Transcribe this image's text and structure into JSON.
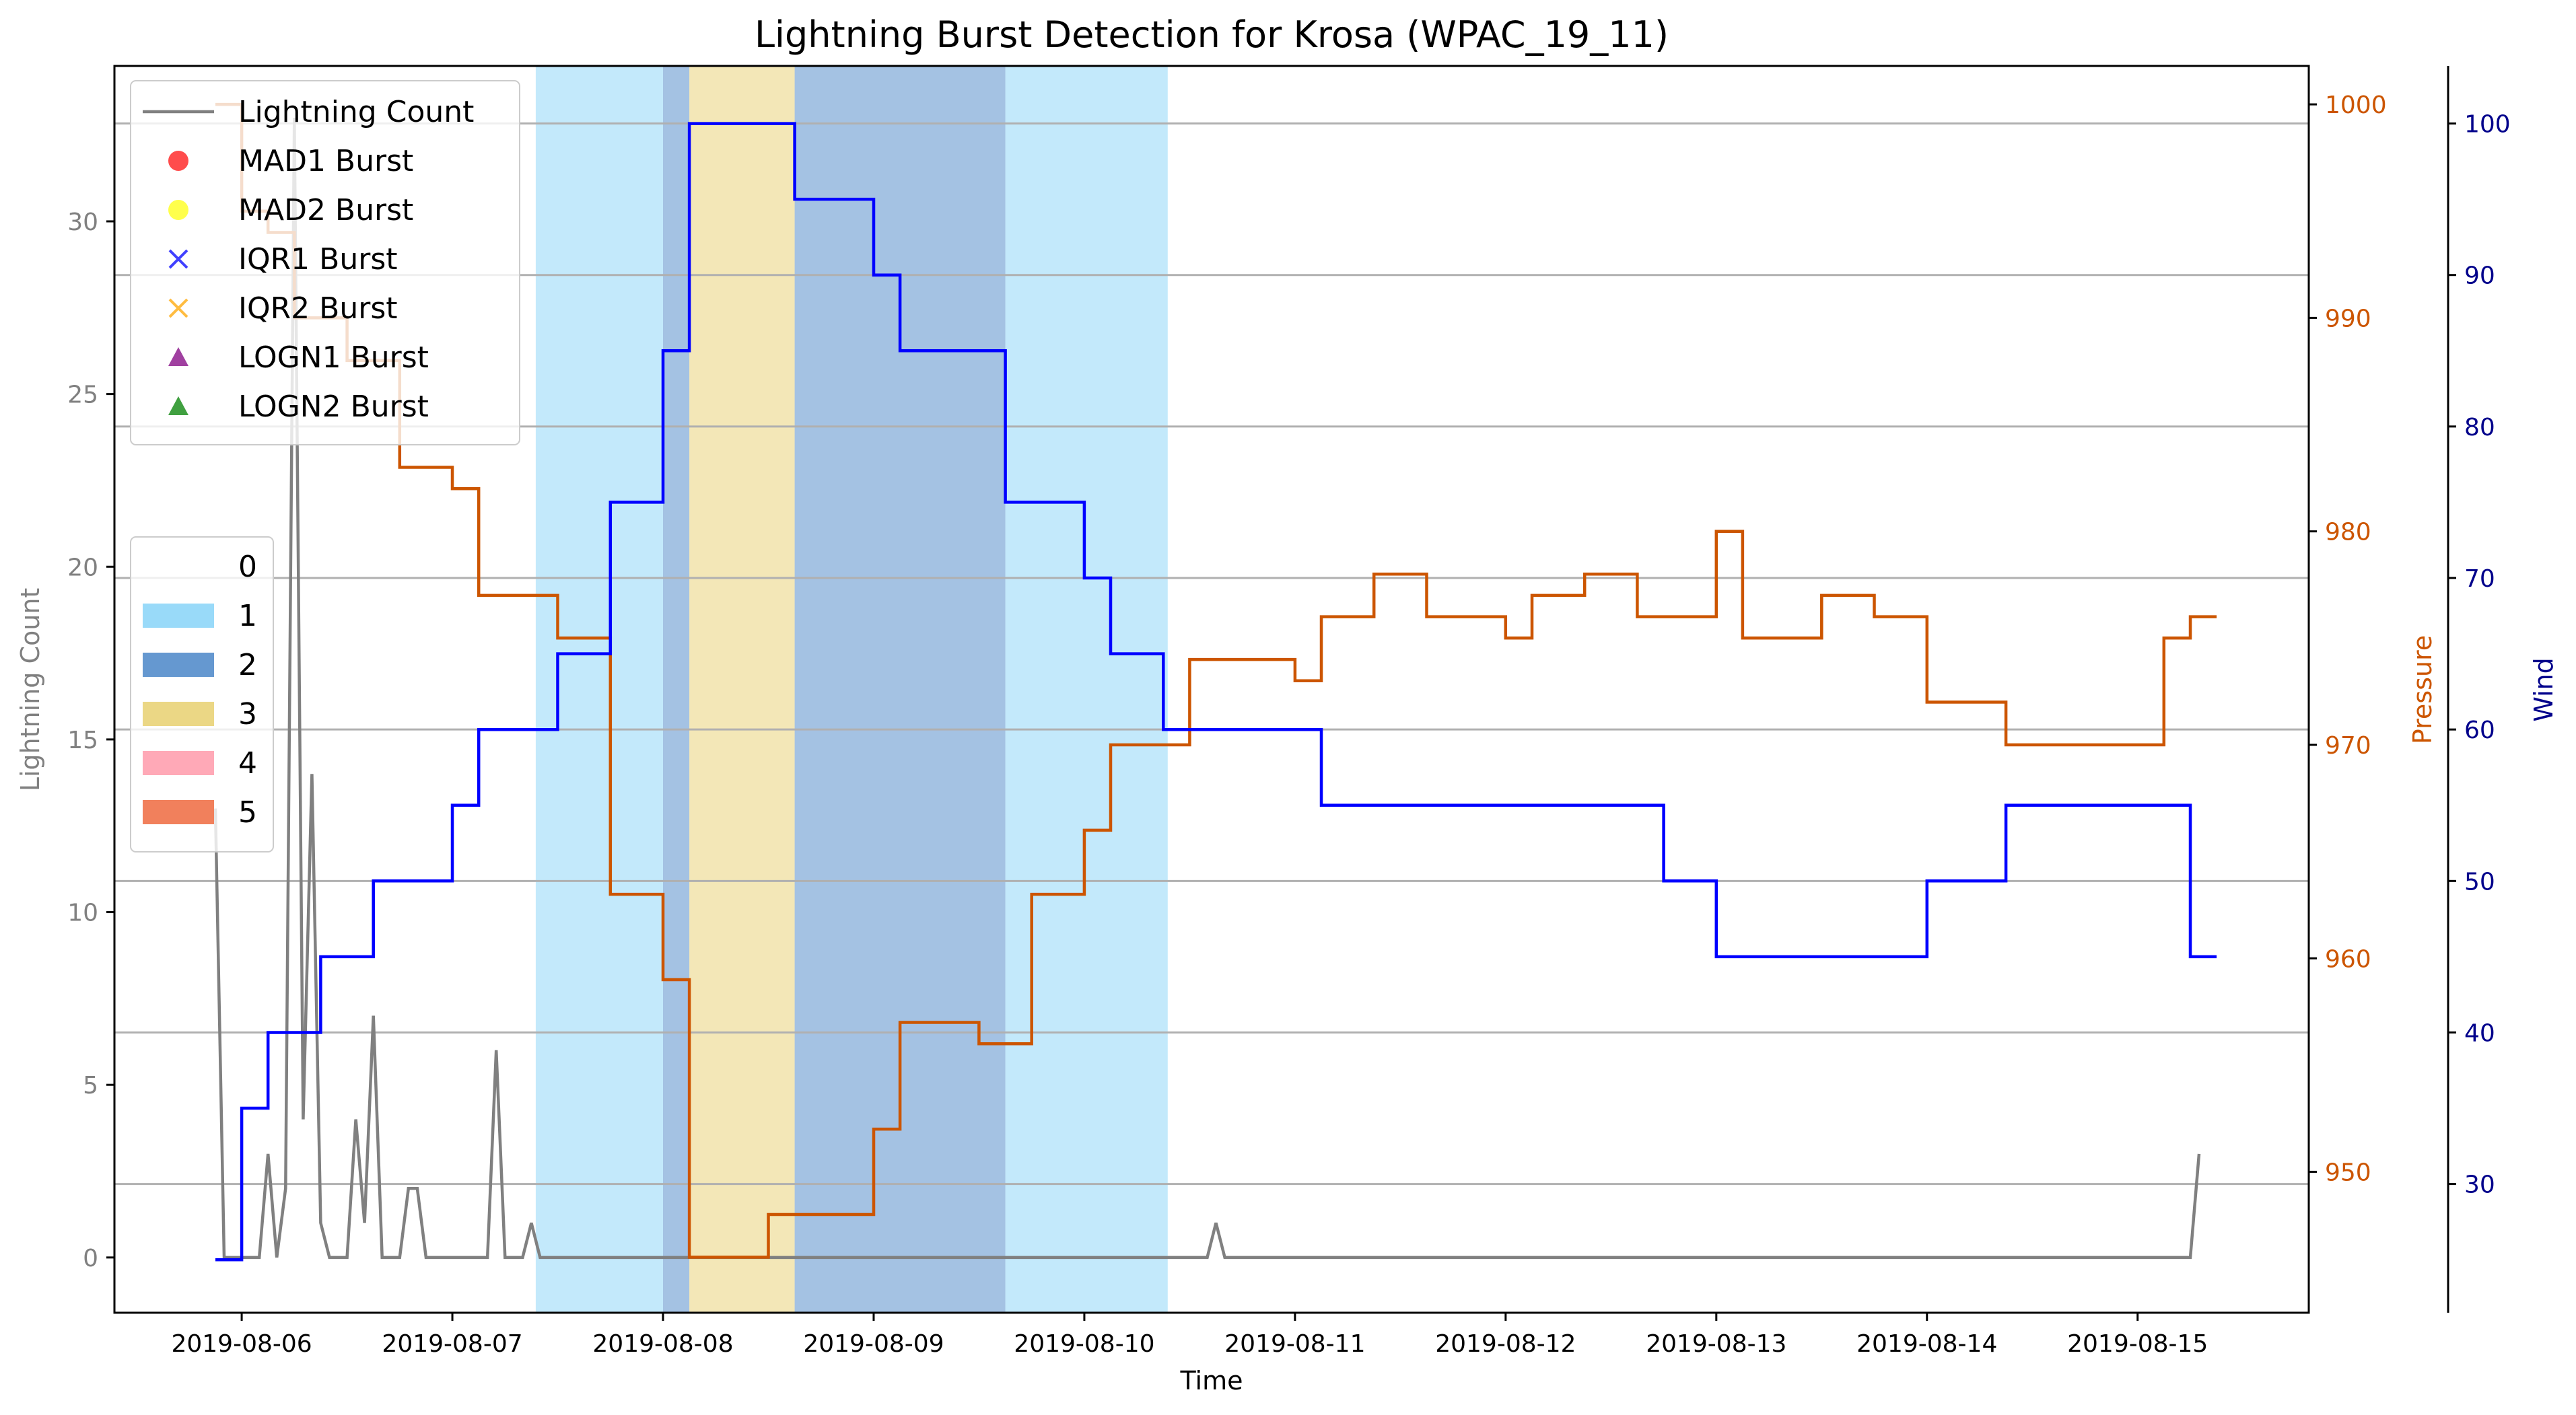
{
  "chart_data": {
    "type": "line",
    "title": "Lightning Burst Detection for Krosa (WPAC_19_11)",
    "xlabel": "Time",
    "x_ticks": [
      "2019-08-06",
      "2019-08-07",
      "2019-08-08",
      "2019-08-09",
      "2019-08-10",
      "2019-08-11",
      "2019-08-12",
      "2019-08-13",
      "2019-08-14",
      "2019-08-15"
    ],
    "xlim": [
      "2019-08-05 09:30",
      "2019-08-15 19:30"
    ],
    "grid": "y (wind axis)",
    "axes": {
      "lightning": {
        "label": "Lightning Count",
        "color": "#808080",
        "ylim": [
          -1.6,
          34.5
        ],
        "ticks": [
          0,
          5,
          10,
          15,
          20,
          25,
          30
        ]
      },
      "pressure": {
        "label": "Pressure",
        "color": "#cc5500",
        "ylim": [
          943.4,
          1001.8
        ],
        "ticks": [
          950,
          960,
          970,
          980,
          990,
          1000
        ]
      },
      "wind": {
        "label": "Wind",
        "color": "#00008b",
        "ylim": [
          21.5,
          103.8
        ],
        "ticks": [
          30,
          40,
          50,
          60,
          70,
          80,
          90,
          100
        ]
      }
    },
    "legend_main": {
      "placement": "upper-left",
      "entries": [
        {
          "label": "Lightning Count",
          "marker": "line",
          "color": "#808080"
        },
        {
          "label": "MAD1 Burst",
          "marker": "circle",
          "color": "#ff0000"
        },
        {
          "label": "MAD2 Burst",
          "marker": "circle",
          "color": "#ffff00"
        },
        {
          "label": "IQR1 Burst",
          "marker": "x",
          "color": "#0000ff"
        },
        {
          "label": "IQR2 Burst",
          "marker": "x",
          "color": "#ffa500"
        },
        {
          "label": "LOGN1 Burst",
          "marker": "triangle",
          "color": "#800080"
        },
        {
          "label": "LOGN2 Burst",
          "marker": "triangle",
          "color": "#008000"
        }
      ]
    },
    "legend_category": {
      "placement": "center-left",
      "entries": [
        {
          "label": "0",
          "color": ""
        },
        {
          "label": "1",
          "color": "#87d3f8"
        },
        {
          "label": "2",
          "color": "#4a86c8"
        },
        {
          "label": "3",
          "color": "#e8d070"
        },
        {
          "label": "4",
          "color": "#ff9aaa"
        },
        {
          "label": "5",
          "color": "#ee6a40"
        }
      ]
    },
    "category_spans": [
      {
        "category": 1,
        "start": "2019-08-07 09:30",
        "end": "2019-08-08 00:00"
      },
      {
        "category": 2,
        "start": "2019-08-08 00:00",
        "end": "2019-08-08 03:00"
      },
      {
        "category": 3,
        "start": "2019-08-08 03:00",
        "end": "2019-08-08 15:00"
      },
      {
        "category": 2,
        "start": "2019-08-08 15:00",
        "end": "2019-08-09 15:00"
      },
      {
        "category": 1,
        "start": "2019-08-09 15:00",
        "end": "2019-08-10 09:30"
      }
    ],
    "series": [
      {
        "name": "Lightning Count",
        "axis": "lightning",
        "color": "#808080",
        "step": false,
        "points": [
          [
            "2019-08-05 21:00",
            13
          ],
          [
            "2019-08-05 22:00",
            0
          ],
          [
            "2019-08-06 02:00",
            0
          ],
          [
            "2019-08-06 03:00",
            3
          ],
          [
            "2019-08-06 04:00",
            0
          ],
          [
            "2019-08-06 05:00",
            2
          ],
          [
            "2019-08-06 06:00",
            33
          ],
          [
            "2019-08-06 07:00",
            4
          ],
          [
            "2019-08-06 08:00",
            14
          ],
          [
            "2019-08-06 09:00",
            1
          ],
          [
            "2019-08-06 10:00",
            0
          ],
          [
            "2019-08-06 12:00",
            0
          ],
          [
            "2019-08-06 13:00",
            4
          ],
          [
            "2019-08-06 14:00",
            1
          ],
          [
            "2019-08-06 15:00",
            7
          ],
          [
            "2019-08-06 16:00",
            0
          ],
          [
            "2019-08-06 18:00",
            0
          ],
          [
            "2019-08-06 19:00",
            2
          ],
          [
            "2019-08-06 20:00",
            2
          ],
          [
            "2019-08-06 21:00",
            0
          ],
          [
            "2019-08-07 04:00",
            0
          ],
          [
            "2019-08-07 05:00",
            6
          ],
          [
            "2019-08-07 06:00",
            0
          ],
          [
            "2019-08-07 08:00",
            0
          ],
          [
            "2019-08-07 09:00",
            1
          ],
          [
            "2019-08-07 10:00",
            0
          ],
          [
            "2019-08-10 14:00",
            0
          ],
          [
            "2019-08-10 15:00",
            1
          ],
          [
            "2019-08-10 16:00",
            0
          ],
          [
            "2019-08-15 06:00",
            0
          ],
          [
            "2019-08-15 07:00",
            3
          ]
        ]
      },
      {
        "name": "Pressure",
        "axis": "pressure",
        "color": "#cc5500",
        "step": true,
        "points": [
          [
            "2019-08-05 21:00",
            1000
          ],
          [
            "2019-08-06 00:00",
            995
          ],
          [
            "2019-08-06 03:00",
            994
          ],
          [
            "2019-08-06 06:00",
            990
          ],
          [
            "2019-08-06 12:00",
            988
          ],
          [
            "2019-08-06 18:00",
            983
          ],
          [
            "2019-08-07 00:00",
            982
          ],
          [
            "2019-08-07 03:00",
            977
          ],
          [
            "2019-08-07 12:00",
            975
          ],
          [
            "2019-08-07 18:00",
            963
          ],
          [
            "2019-08-08 00:00",
            959
          ],
          [
            "2019-08-08 03:00",
            946
          ],
          [
            "2019-08-08 12:00",
            948
          ],
          [
            "2019-08-09 00:00",
            952
          ],
          [
            "2019-08-09 03:00",
            957
          ],
          [
            "2019-08-09 12:00",
            956
          ],
          [
            "2019-08-09 18:00",
            963
          ],
          [
            "2019-08-10 00:00",
            966
          ],
          [
            "2019-08-10 03:00",
            970
          ],
          [
            "2019-08-10 12:00",
            974
          ],
          [
            "2019-08-11 00:00",
            973
          ],
          [
            "2019-08-11 03:00",
            976
          ],
          [
            "2019-08-11 09:00",
            978
          ],
          [
            "2019-08-11 15:00",
            976
          ],
          [
            "2019-08-12 00:00",
            975
          ],
          [
            "2019-08-12 03:00",
            977
          ],
          [
            "2019-08-12 09:00",
            978
          ],
          [
            "2019-08-12 15:00",
            976
          ],
          [
            "2019-08-13 00:00",
            980
          ],
          [
            "2019-08-13 03:00",
            975
          ],
          [
            "2019-08-13 12:00",
            977
          ],
          [
            "2019-08-13 18:00",
            976
          ],
          [
            "2019-08-14 00:00",
            972
          ],
          [
            "2019-08-14 09:00",
            970
          ],
          [
            "2019-08-15 03:00",
            975
          ],
          [
            "2019-08-15 06:00",
            976
          ],
          [
            "2019-08-15 09:00",
            976
          ]
        ]
      },
      {
        "name": "Wind",
        "axis": "wind",
        "color": "#0000ff",
        "step": true,
        "points": [
          [
            "2019-08-05 21:00",
            25
          ],
          [
            "2019-08-06 00:00",
            35
          ],
          [
            "2019-08-06 03:00",
            40
          ],
          [
            "2019-08-06 09:00",
            45
          ],
          [
            "2019-08-06 15:00",
            50
          ],
          [
            "2019-08-07 00:00",
            55
          ],
          [
            "2019-08-07 03:00",
            60
          ],
          [
            "2019-08-07 12:00",
            65
          ],
          [
            "2019-08-07 18:00",
            75
          ],
          [
            "2019-08-08 00:00",
            85
          ],
          [
            "2019-08-08 03:00",
            100
          ],
          [
            "2019-08-08 15:00",
            95
          ],
          [
            "2019-08-09 00:00",
            90
          ],
          [
            "2019-08-09 03:00",
            85
          ],
          [
            "2019-08-09 15:00",
            75
          ],
          [
            "2019-08-10 00:00",
            70
          ],
          [
            "2019-08-10 03:00",
            65
          ],
          [
            "2019-08-10 09:00",
            60
          ],
          [
            "2019-08-11 03:00",
            55
          ],
          [
            "2019-08-12 18:00",
            50
          ],
          [
            "2019-08-13 00:00",
            45
          ],
          [
            "2019-08-14 00:00",
            50
          ],
          [
            "2019-08-14 09:00",
            55
          ],
          [
            "2019-08-15 06:00",
            45
          ],
          [
            "2019-08-15 09:00",
            45
          ]
        ]
      }
    ]
  }
}
